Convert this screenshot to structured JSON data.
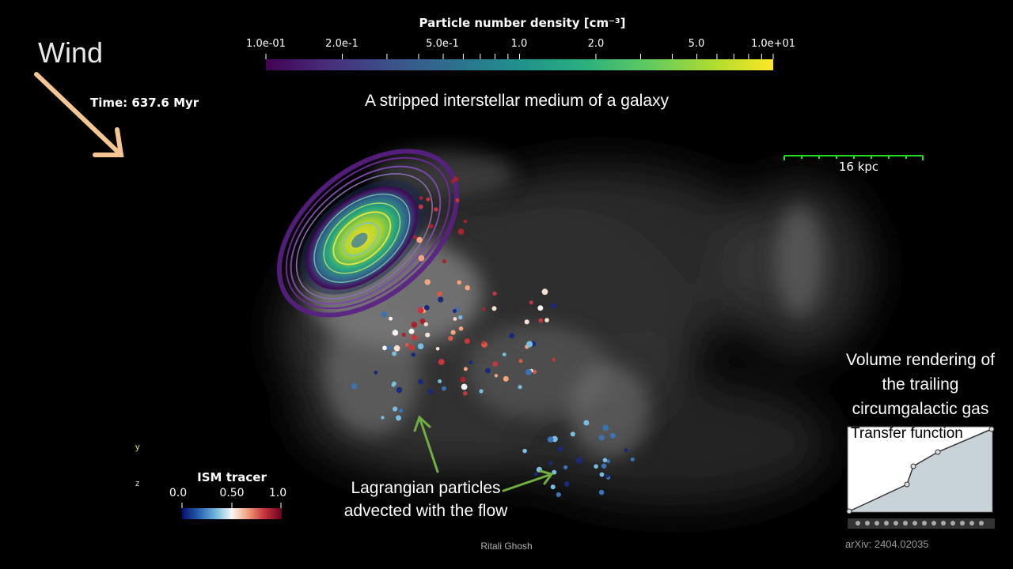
{
  "colorbar": {
    "title": "Particle number density [cm⁻³]",
    "labels": [
      "1.0e-01",
      "2.0e-1",
      "5.0e-1",
      "1.0",
      "2.0",
      "5.0",
      "1.0e+01"
    ],
    "scale": "log"
  },
  "subtitle": "A stripped interstellar medium of a galaxy",
  "wind_label": "Wind",
  "time_label": "Time: 637.6 Myr",
  "scale_bar_label": "16 kpc",
  "volume_rendering_text": [
    "Volume rendering of",
    "the trailing",
    "circumgalactic gas"
  ],
  "transfer_function_title": "Transfer function",
  "lagrangian_text": [
    "Lagrangian particles",
    "advected with the flow"
  ],
  "ism_tracer": {
    "title": "ISM tracer",
    "labels": [
      "0.0",
      "0.50",
      "1.0"
    ]
  },
  "credit": "Ritali Ghosh",
  "arxiv": "arXiv: 2404.02035",
  "colors": {
    "background": "#000000",
    "wind_arrow": "#f5c594",
    "annotation_arrow": "#6fae3f",
    "scale_bar": "#22dd22"
  }
}
